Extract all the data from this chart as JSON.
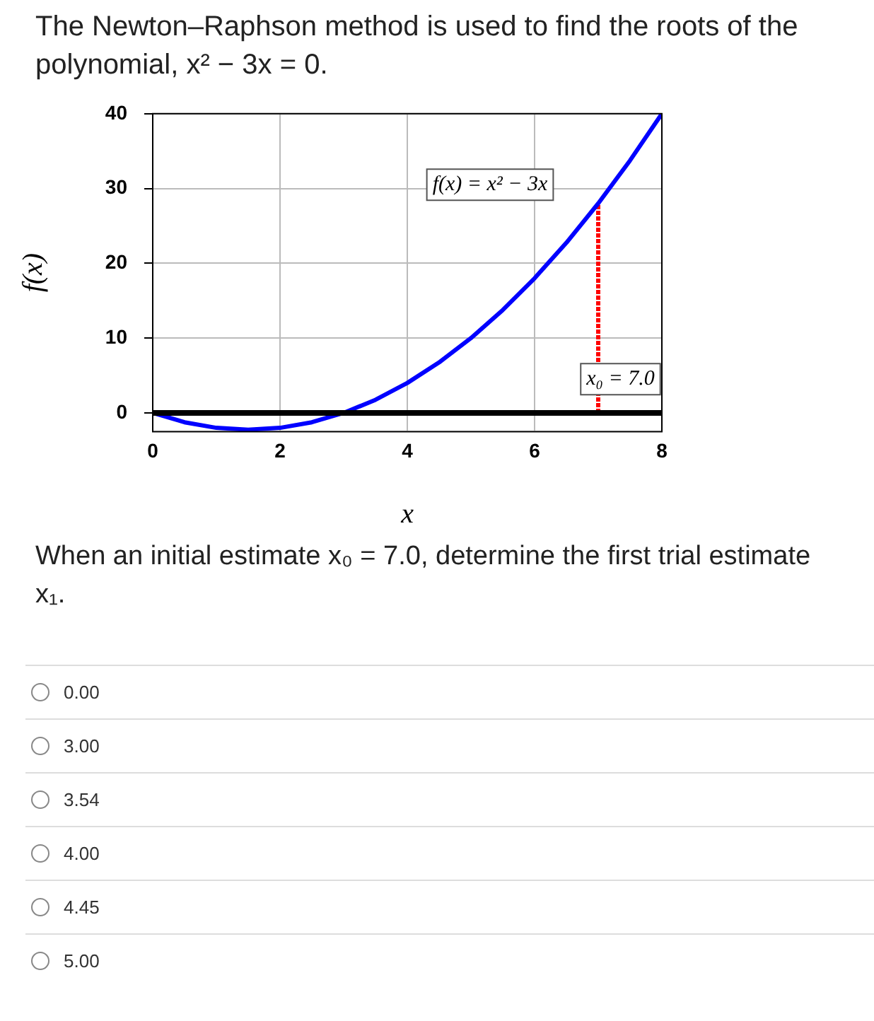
{
  "chart_data": {
    "type": "line",
    "title": "The Newton–Raphson method is used to find the roots of the polynomial, x² − 3x = 0.",
    "subtitle": "When an initial estimate x₀ = 7.0, determine the first trial estimate x₁.",
    "xlabel": "x",
    "ylabel": "f(x)",
    "series": [
      {
        "color": "#0000ff",
        "marker": "none",
        "line_style": "solid",
        "x": [
          0,
          0.5,
          1,
          1.5,
          2,
          2.5,
          3,
          3.5,
          4,
          4.5,
          5,
          5.5,
          6,
          6.5,
          7,
          7.5,
          8
        ],
        "values": [
          0,
          -1.25,
          -2,
          -2.25,
          -2,
          -1.25,
          0,
          1.75,
          4,
          6.75,
          10,
          13.75,
          18,
          22.75,
          28,
          33.75,
          40
        ]
      },
      {
        "color": "#ff0000",
        "marker": "none",
        "line_style": "dotted",
        "x": [
          7,
          7
        ],
        "values": [
          0,
          28
        ]
      }
    ],
    "xlim": [
      0,
      8
    ],
    "xticks": [
      0,
      2,
      4,
      6,
      8
    ],
    "ylim": [
      -2.5,
      40
    ],
    "yticks": [
      0,
      10,
      20,
      30,
      40
    ],
    "grid": true,
    "legend": false,
    "ref_lines": [
      {
        "axis": "y",
        "value": 0,
        "color": "#000000"
      }
    ],
    "annotations": [
      "f(x) = x² − 3x",
      "x₀ = 7.0",
      "0.00",
      "3.00",
      "3.54",
      "4.00",
      "4.45",
      "5.00"
    ]
  }
}
